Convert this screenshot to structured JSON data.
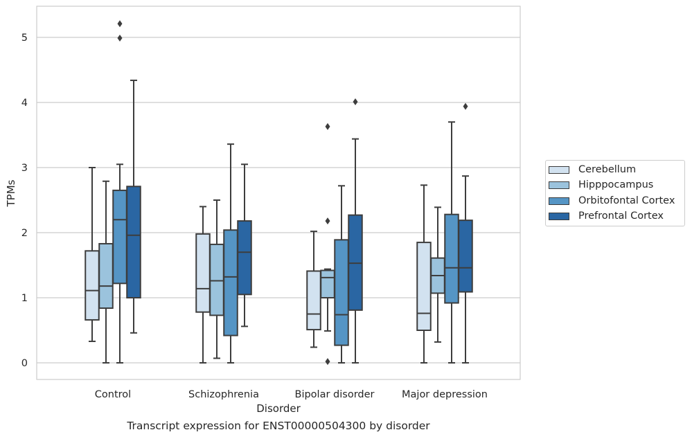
{
  "caption": "Transcript expression for ENST00000504300 by disorder",
  "chart_data": {
    "type": "boxplot",
    "xlabel": "Disorder",
    "ylabel": "TPMs",
    "ylim": [
      -0.25,
      5.5
    ],
    "yticks": [
      0,
      1,
      2,
      3,
      4,
      5
    ],
    "grid": "horizontal",
    "legend_position": "right",
    "categories": [
      "Control",
      "Schizophrenia",
      "Bipolar disorder",
      "Major depression"
    ],
    "series": [
      {
        "name": "Cerebellum",
        "color": "#d2e2f0",
        "boxes": [
          {
            "whisker_low": 0.33,
            "q1": 0.66,
            "median": 1.11,
            "q3": 1.72,
            "whisker_high": 3.0,
            "outliers": []
          },
          {
            "whisker_low": 0.0,
            "q1": 0.78,
            "median": 1.14,
            "q3": 1.98,
            "whisker_high": 2.4,
            "outliers": []
          },
          {
            "whisker_low": 0.24,
            "q1": 0.51,
            "median": 0.75,
            "q3": 1.41,
            "whisker_high": 2.02,
            "outliers": []
          },
          {
            "whisker_low": 0.0,
            "q1": 0.5,
            "median": 0.76,
            "q3": 1.85,
            "whisker_high": 2.73,
            "outliers": []
          }
        ]
      },
      {
        "name": "Hipppocampus",
        "color": "#9bc3dd",
        "boxes": [
          {
            "whisker_low": 0.0,
            "q1": 0.84,
            "median": 1.18,
            "q3": 1.83,
            "whisker_high": 2.79,
            "outliers": []
          },
          {
            "whisker_low": 0.07,
            "q1": 0.73,
            "median": 1.26,
            "q3": 1.82,
            "whisker_high": 2.5,
            "outliers": []
          },
          {
            "whisker_low": 0.49,
            "q1": 1.0,
            "median": 1.31,
            "q3": 1.42,
            "whisker_high": 1.44,
            "outliers": [
              0.02,
              2.18,
              3.63
            ]
          },
          {
            "whisker_low": 0.32,
            "q1": 1.07,
            "median": 1.34,
            "q3": 1.61,
            "whisker_high": 2.39,
            "outliers": []
          }
        ]
      },
      {
        "name": "Orbitofontal Cortex",
        "color": "#5595c5",
        "boxes": [
          {
            "whisker_low": 0.0,
            "q1": 1.22,
            "median": 2.2,
            "q3": 2.65,
            "whisker_high": 3.05,
            "outliers": [
              4.99,
              5.21
            ]
          },
          {
            "whisker_low": 0.0,
            "q1": 0.42,
            "median": 1.32,
            "q3": 2.04,
            "whisker_high": 3.36,
            "outliers": []
          },
          {
            "whisker_low": 0.0,
            "q1": 0.27,
            "median": 0.74,
            "q3": 1.89,
            "whisker_high": 2.72,
            "outliers": []
          },
          {
            "whisker_low": 0.0,
            "q1": 0.92,
            "median": 1.46,
            "q3": 2.28,
            "whisker_high": 3.7,
            "outliers": []
          }
        ]
      },
      {
        "name": "Prefrontal Cortex",
        "color": "#2a66a3",
        "boxes": [
          {
            "whisker_low": 0.46,
            "q1": 1.0,
            "median": 1.96,
            "q3": 2.71,
            "whisker_high": 4.34,
            "outliers": []
          },
          {
            "whisker_low": 0.56,
            "q1": 1.05,
            "median": 1.7,
            "q3": 2.18,
            "whisker_high": 3.05,
            "outliers": []
          },
          {
            "whisker_low": 0.0,
            "q1": 0.81,
            "median": 1.53,
            "q3": 2.27,
            "whisker_high": 3.44,
            "outliers": [
              4.01
            ]
          },
          {
            "whisker_low": 0.0,
            "q1": 1.09,
            "median": 1.46,
            "q3": 2.19,
            "whisker_high": 2.87,
            "outliers": [
              3.94
            ]
          }
        ]
      }
    ]
  }
}
